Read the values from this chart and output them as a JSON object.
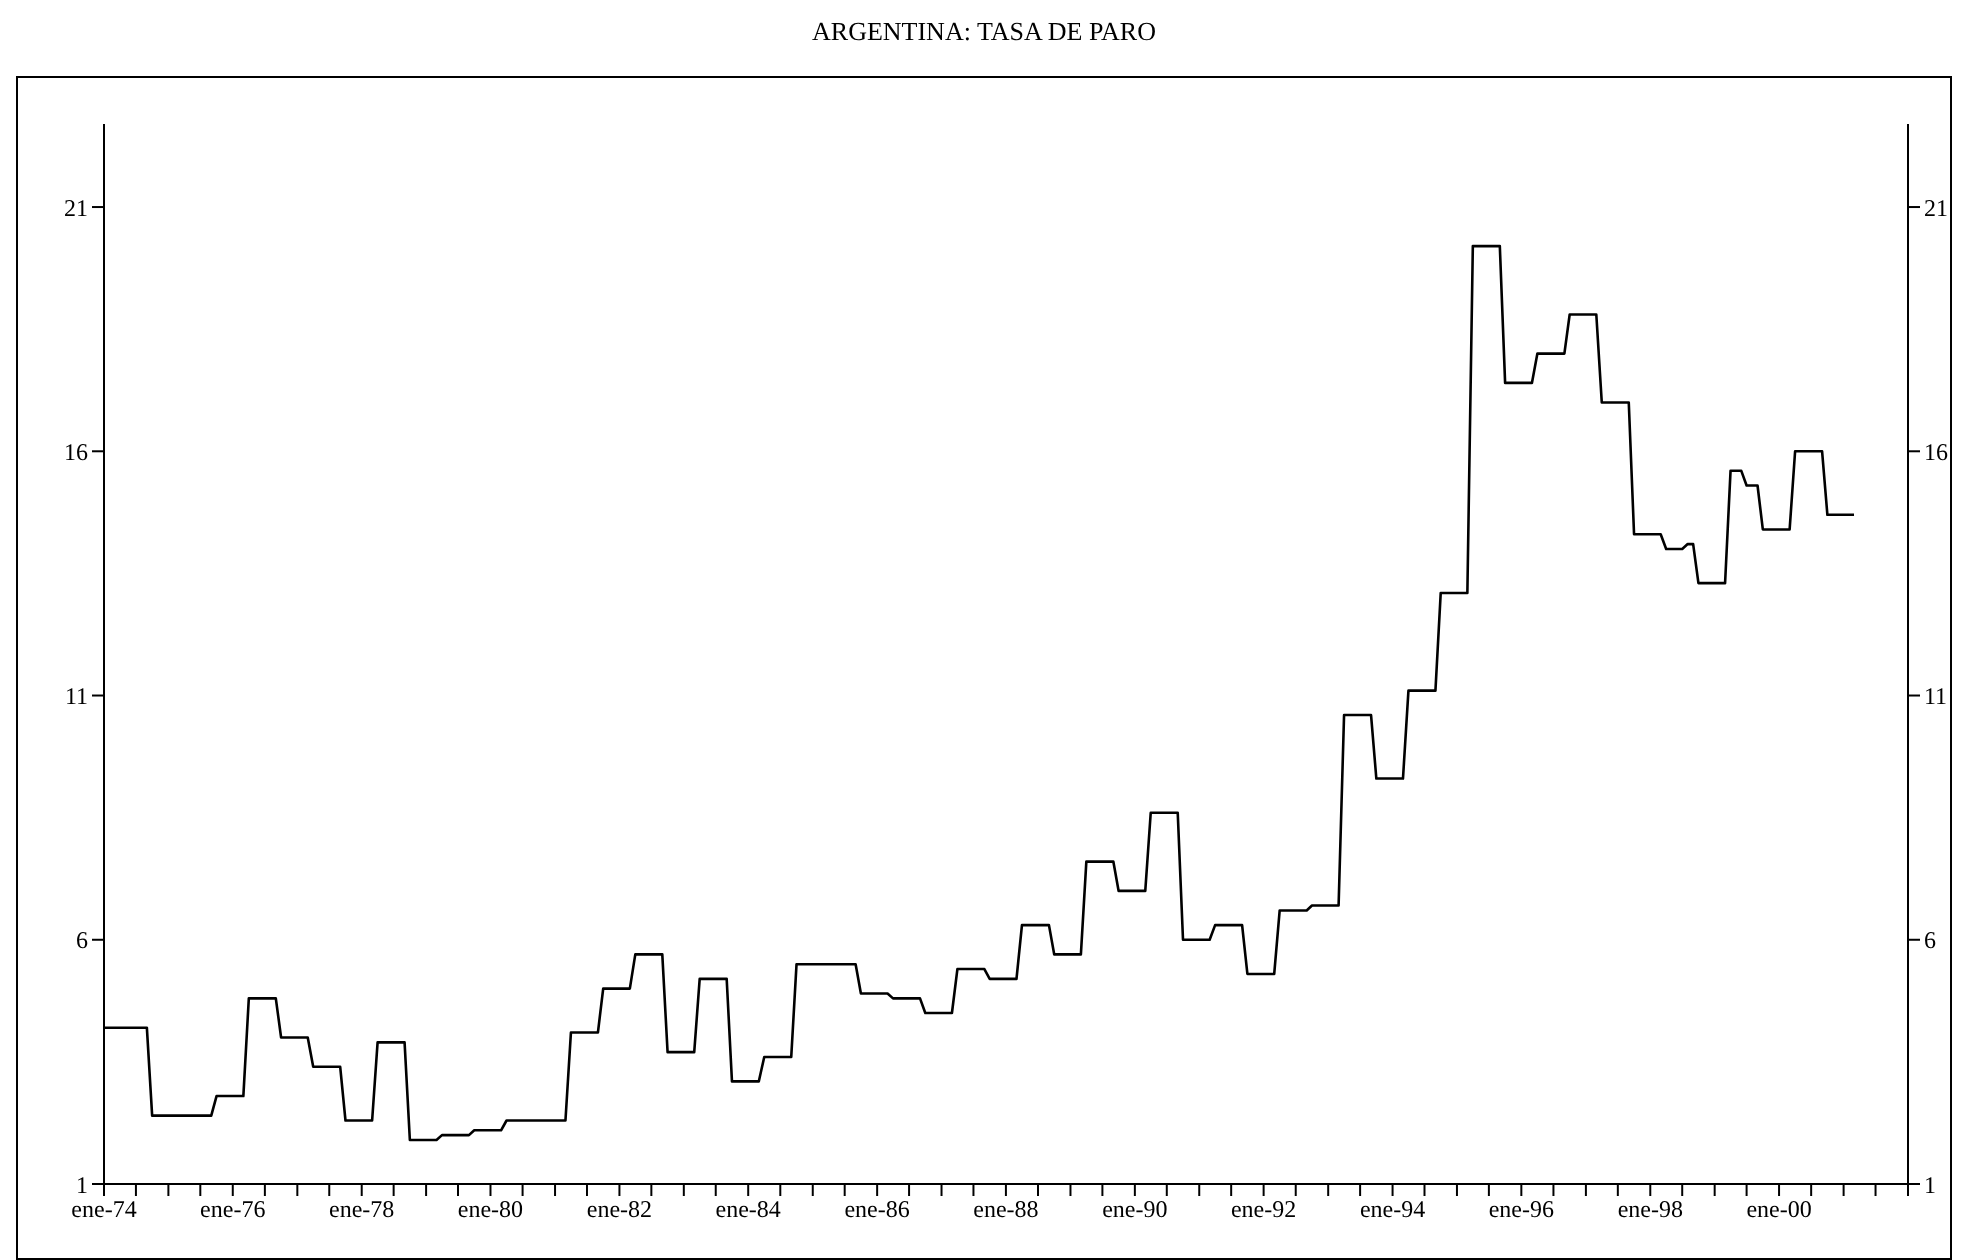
{
  "chart_data": {
    "type": "line",
    "title": "ARGENTINA: TASA DE PARO",
    "x": [
      "1974-01",
      "1974-09",
      "1974-10",
      "1975-09",
      "1975-10",
      "1976-03",
      "1976-04",
      "1976-09",
      "1976-10",
      "1977-03",
      "1977-04",
      "1977-09",
      "1977-10",
      "1978-03",
      "1978-04",
      "1978-09",
      "1978-10",
      "1979-03",
      "1979-04",
      "1979-09",
      "1979-10",
      "1980-03",
      "1980-04",
      "1981-03",
      "1981-04",
      "1981-09",
      "1981-10",
      "1982-03",
      "1982-04",
      "1982-09",
      "1982-10",
      "1983-03",
      "1983-04",
      "1983-09",
      "1983-10",
      "1984-03",
      "1984-04",
      "1984-09",
      "1984-10",
      "1985-09",
      "1985-10",
      "1986-03",
      "1986-04",
      "1986-09",
      "1986-10",
      "1987-03",
      "1987-04",
      "1987-09",
      "1987-10",
      "1988-03",
      "1988-04",
      "1988-09",
      "1988-10",
      "1989-03",
      "1989-04",
      "1989-09",
      "1989-10",
      "1990-03",
      "1990-04",
      "1990-09",
      "1990-10",
      "1991-03",
      "1991-04",
      "1991-09",
      "1991-10",
      "1992-03",
      "1992-04",
      "1992-09",
      "1992-10",
      "1993-03",
      "1993-04",
      "1993-09",
      "1993-10",
      "1994-03",
      "1994-04",
      "1994-09",
      "1994-10",
      "1995-03",
      "1995-04",
      "1995-09",
      "1995-10",
      "1996-03",
      "1996-04",
      "1996-09",
      "1996-10",
      "1997-03",
      "1997-04",
      "1997-09",
      "1997-10",
      "1998-03",
      "1998-04",
      "1998-07",
      "1998-08",
      "1998-09",
      "1998-10",
      "1999-03",
      "1999-04",
      "1999-06",
      "1999-07",
      "1999-09",
      "1999-10",
      "2000-03",
      "2000-04",
      "2000-09",
      "2000-10",
      "2001-03"
    ],
    "series": [
      {
        "color": "#000000",
        "values": [
          4.2,
          4.2,
          2.4,
          2.4,
          2.8,
          2.8,
          4.8,
          4.8,
          4.0,
          4.0,
          3.4,
          3.4,
          2.3,
          2.3,
          3.9,
          3.9,
          1.9,
          1.9,
          2.0,
          2.0,
          2.1,
          2.1,
          2.3,
          2.3,
          4.1,
          4.1,
          5.0,
          5.0,
          5.7,
          5.7,
          3.7,
          3.7,
          5.2,
          5.2,
          3.1,
          3.1,
          3.6,
          3.6,
          5.5,
          5.5,
          4.9,
          4.9,
          4.8,
          4.8,
          4.5,
          4.5,
          5.4,
          5.4,
          5.2,
          5.2,
          6.3,
          6.3,
          5.7,
          5.7,
          7.6,
          7.6,
          7.0,
          7.0,
          8.6,
          8.6,
          6.0,
          6.0,
          6.3,
          6.3,
          5.3,
          5.3,
          6.6,
          6.6,
          6.7,
          6.7,
          10.6,
          10.6,
          9.3,
          9.3,
          11.1,
          11.1,
          13.1,
          13.1,
          20.2,
          20.2,
          17.4,
          17.4,
          18.0,
          18.0,
          18.8,
          18.8,
          17.0,
          17.0,
          14.3,
          14.3,
          14.0,
          14.0,
          14.1,
          14.1,
          13.3,
          13.3,
          15.6,
          15.6,
          15.3,
          15.3,
          14.4,
          14.4,
          16.0,
          16.0,
          14.7,
          14.7
        ]
      }
    ],
    "xlim": [
      "1974-01",
      "2002-01"
    ],
    "xticks": [
      {
        "value": "1974-01",
        "label": "ene-74"
      },
      {
        "value": "1974-07",
        "label": null
      },
      {
        "value": "1975-01",
        "label": null
      },
      {
        "value": "1975-07",
        "label": null
      },
      {
        "value": "1976-01",
        "label": "ene-76"
      },
      {
        "value": "1976-07",
        "label": null
      },
      {
        "value": "1977-01",
        "label": null
      },
      {
        "value": "1977-07",
        "label": null
      },
      {
        "value": "1978-01",
        "label": "ene-78"
      },
      {
        "value": "1978-07",
        "label": null
      },
      {
        "value": "1979-01",
        "label": null
      },
      {
        "value": "1979-07",
        "label": null
      },
      {
        "value": "1980-01",
        "label": "ene-80"
      },
      {
        "value": "1980-07",
        "label": null
      },
      {
        "value": "1981-01",
        "label": null
      },
      {
        "value": "1981-07",
        "label": null
      },
      {
        "value": "1982-01",
        "label": "ene-82"
      },
      {
        "value": "1982-07",
        "label": null
      },
      {
        "value": "1983-01",
        "label": null
      },
      {
        "value": "1983-07",
        "label": null
      },
      {
        "value": "1984-01",
        "label": "ene-84"
      },
      {
        "value": "1984-07",
        "label": null
      },
      {
        "value": "1985-01",
        "label": null
      },
      {
        "value": "1985-07",
        "label": null
      },
      {
        "value": "1986-01",
        "label": "ene-86"
      },
      {
        "value": "1986-07",
        "label": null
      },
      {
        "value": "1987-01",
        "label": null
      },
      {
        "value": "1987-07",
        "label": null
      },
      {
        "value": "1988-01",
        "label": "ene-88"
      },
      {
        "value": "1988-07",
        "label": null
      },
      {
        "value": "1989-01",
        "label": null
      },
      {
        "value": "1989-07",
        "label": null
      },
      {
        "value": "1990-01",
        "label": "ene-90"
      },
      {
        "value": "1990-07",
        "label": null
      },
      {
        "value": "1991-01",
        "label": null
      },
      {
        "value": "1991-07",
        "label": null
      },
      {
        "value": "1992-01",
        "label": "ene-92"
      },
      {
        "value": "1992-07",
        "label": null
      },
      {
        "value": "1993-01",
        "label": null
      },
      {
        "value": "1993-07",
        "label": null
      },
      {
        "value": "1994-01",
        "label": "ene-94"
      },
      {
        "value": "1994-07",
        "label": null
      },
      {
        "value": "1995-01",
        "label": null
      },
      {
        "value": "1995-07",
        "label": null
      },
      {
        "value": "1996-01",
        "label": "ene-96"
      },
      {
        "value": "1996-07",
        "label": null
      },
      {
        "value": "1997-01",
        "label": null
      },
      {
        "value": "1997-07",
        "label": null
      },
      {
        "value": "1998-01",
        "label": "ene-98"
      },
      {
        "value": "1998-07",
        "label": null
      },
      {
        "value": "1999-01",
        "label": null
      },
      {
        "value": "1999-07",
        "label": null
      },
      {
        "value": "2000-01",
        "label": "ene-00"
      },
      {
        "value": "2000-07",
        "label": null
      },
      {
        "value": "2001-01",
        "label": null
      },
      {
        "value": "2001-07",
        "label": null
      },
      {
        "value": "2002-01",
        "label": null
      }
    ],
    "ylim": [
      1,
      22.7
    ],
    "yticks": [
      1,
      6,
      11,
      16,
      21
    ],
    "y2lim": [
      1,
      22.7
    ],
    "y2ticks": [
      1,
      6,
      11,
      16,
      21
    ]
  }
}
